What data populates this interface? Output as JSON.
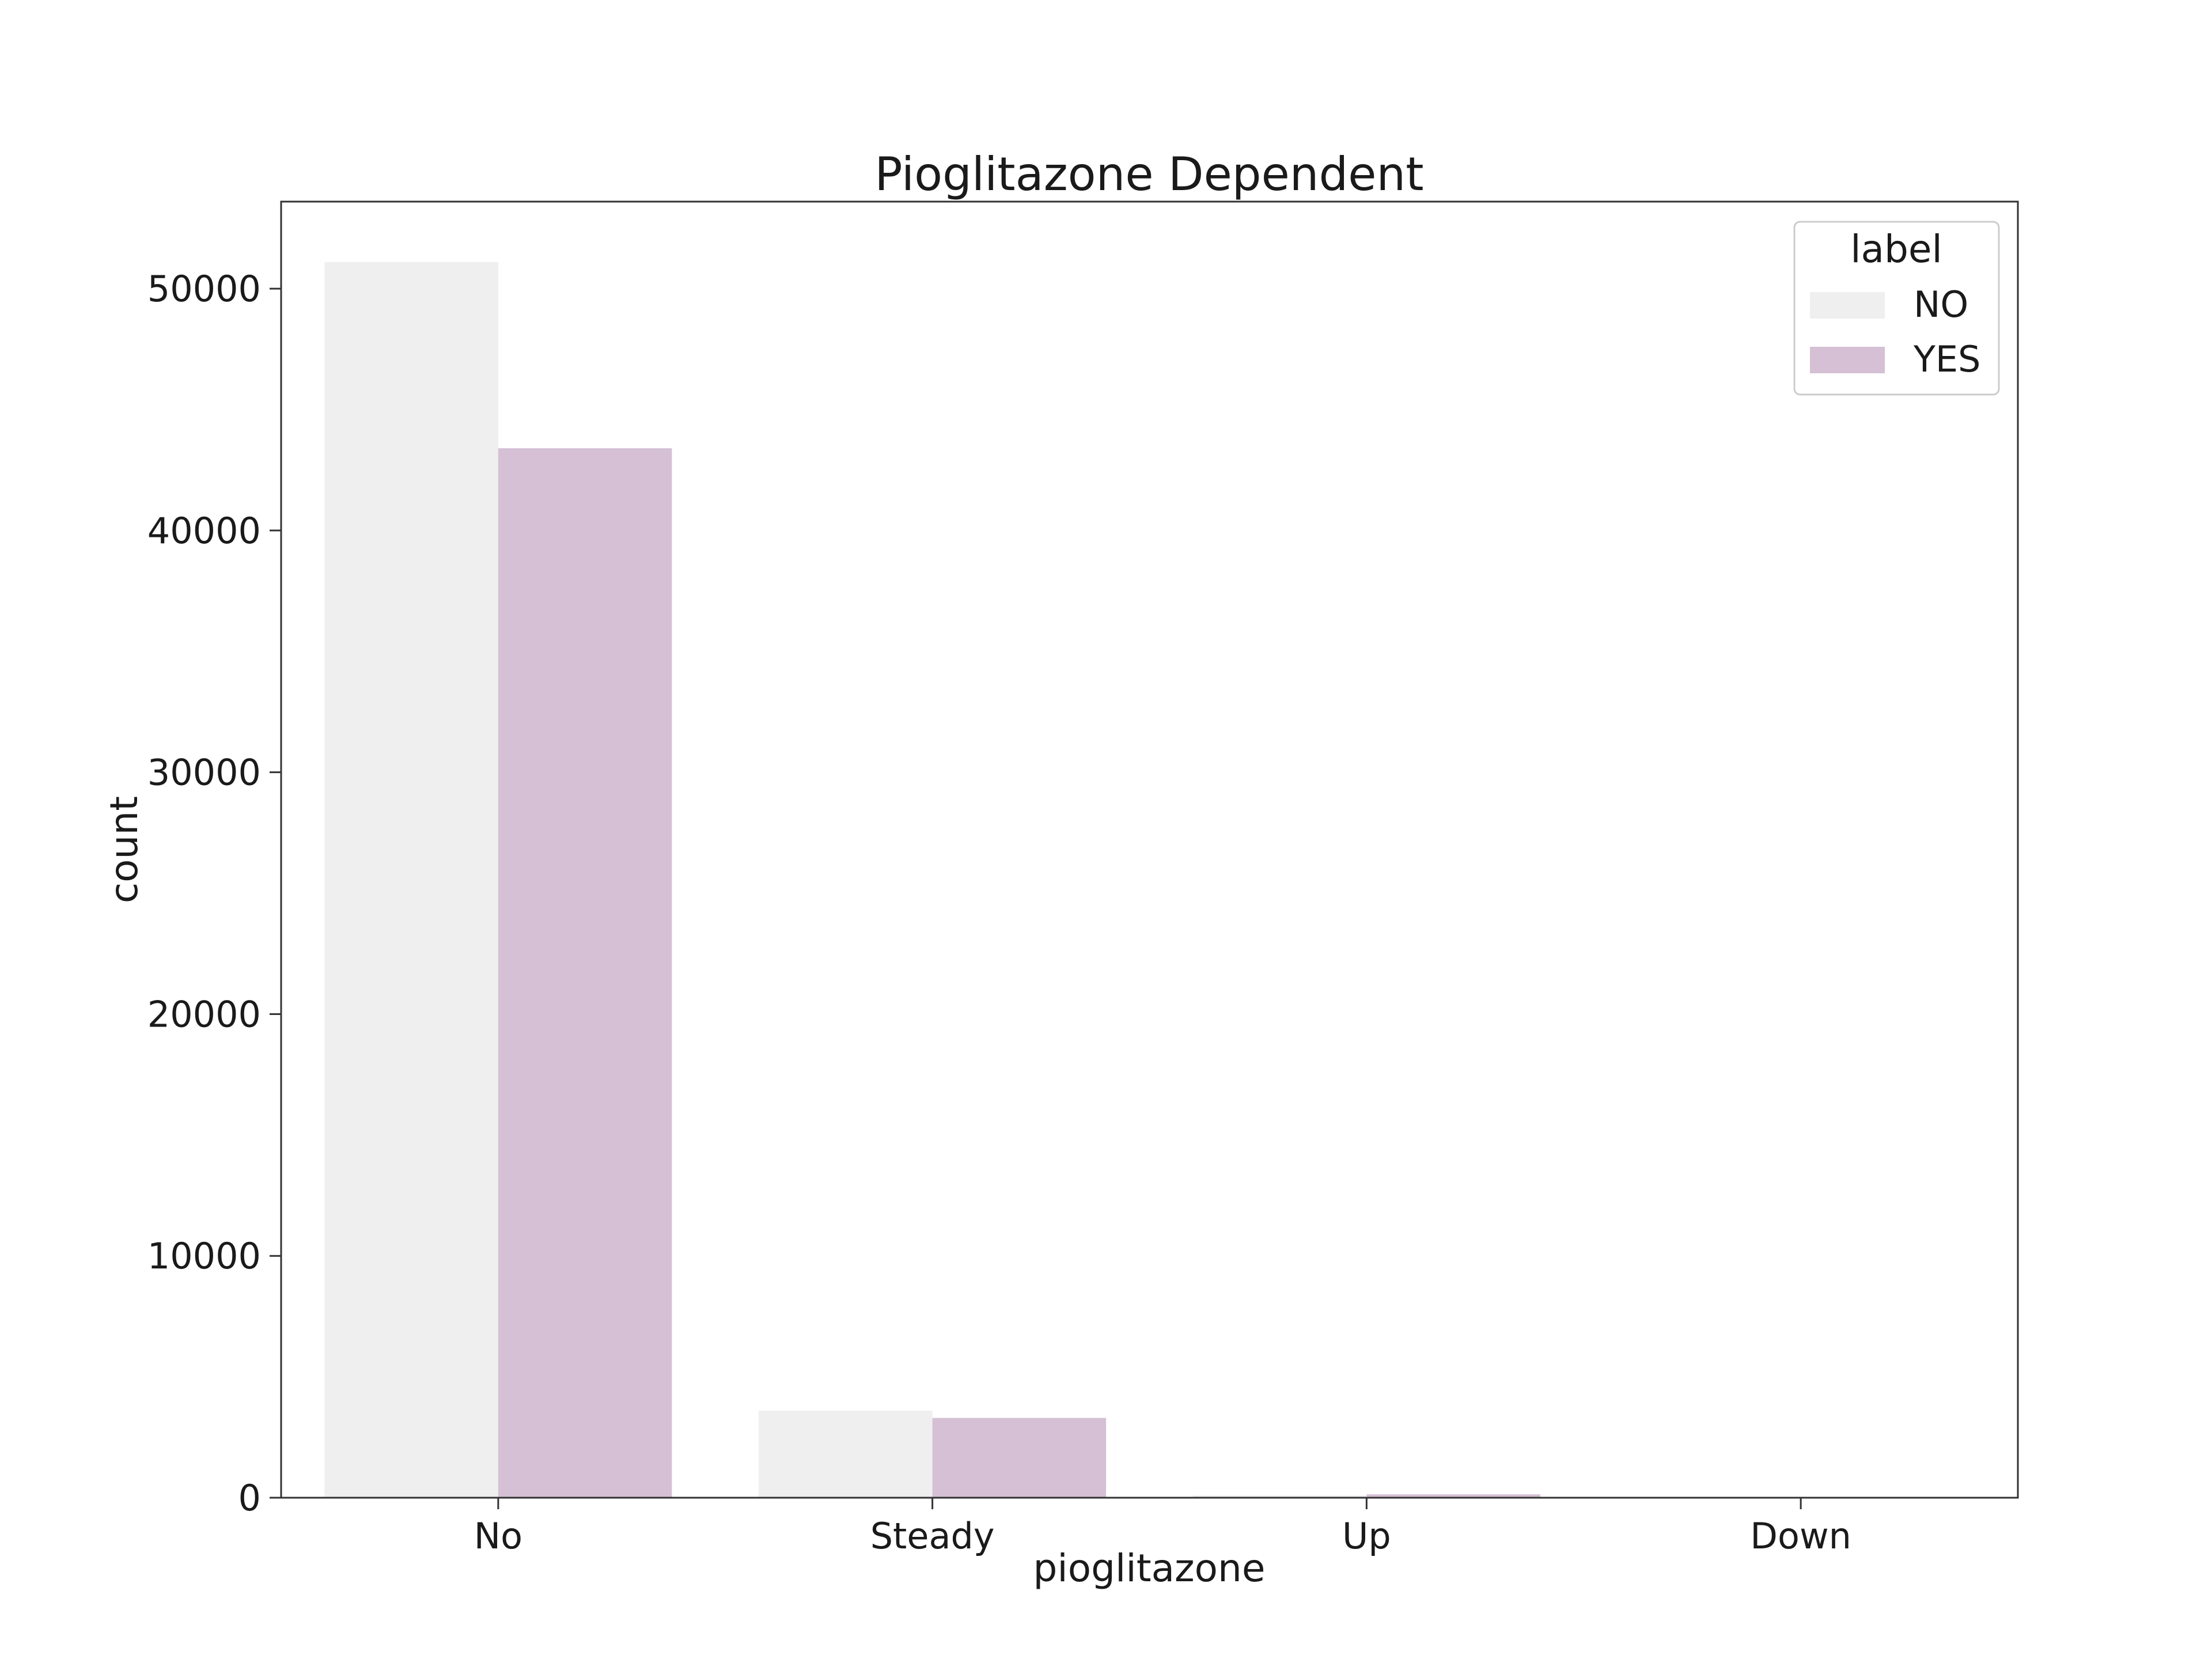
{
  "chart_data": {
    "type": "bar",
    "title": "Pioglitazone Dependent",
    "xlabel": "pioglitazone",
    "ylabel": "count",
    "categories": [
      "No",
      "Steady",
      "Up",
      "Down"
    ],
    "series": [
      {
        "name": "NO",
        "color": "#efefef",
        "values": [
          51100,
          3600,
          90,
          20
        ]
      },
      {
        "name": "YES",
        "color": "#d5c0d5",
        "values": [
          43400,
          3300,
          140,
          30
        ]
      }
    ],
    "ylim": [
      0,
      53600
    ],
    "yticks": [
      0,
      10000,
      20000,
      30000,
      40000,
      50000
    ],
    "ytick_labels": [
      "0",
      "10000",
      "20000",
      "30000",
      "40000",
      "50000"
    ],
    "legend": {
      "title": "label",
      "position": "top-right"
    },
    "grid": false
  }
}
